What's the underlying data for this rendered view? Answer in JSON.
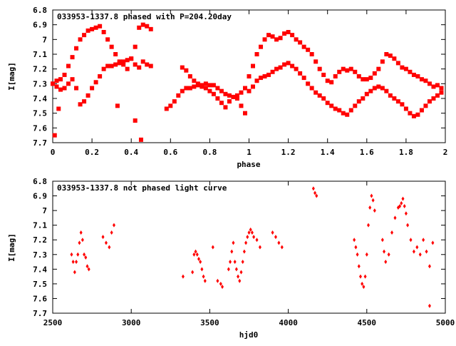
{
  "chart_data": [
    {
      "type": "scatter",
      "title": "033953-1337.8 phased with P=204.20day",
      "xlabel": "phase",
      "ylabel": "I[mag]",
      "xlim": [
        0,
        2
      ],
      "ylim": [
        6.8,
        7.7
      ],
      "y_inverted": true,
      "x_ticks": [
        "0",
        "0.2",
        "0.4",
        "0.6",
        "0.8",
        "1",
        "1.2",
        "1.4",
        "1.6",
        "1.8",
        "2"
      ],
      "y_ticks": [
        "6.8",
        "6.9",
        "7",
        "7.1",
        "7.2",
        "7.3",
        "7.4",
        "7.5",
        "7.6",
        "7.7"
      ],
      "marker_color": "#ff0000",
      "series": [
        {
          "x": [
            0.0,
            0.02,
            0.04,
            0.06,
            0.08,
            0.1,
            0.12,
            0.14,
            0.16,
            0.18,
            0.2,
            0.22,
            0.24,
            0.26,
            0.28,
            0.3,
            0.32,
            0.34,
            0.36,
            0.38,
            0.4,
            0.42,
            0.44,
            0.46,
            0.48,
            0.5,
            0.0,
            0.02,
            0.04,
            0.06,
            0.08,
            0.1,
            0.12,
            0.14,
            0.16,
            0.18,
            0.2,
            0.22,
            0.24,
            0.26,
            0.28,
            0.3,
            0.32,
            0.34,
            0.36,
            0.38,
            0.4,
            0.42,
            0.44,
            0.46,
            0.48,
            0.5,
            0.01,
            0.03,
            0.33,
            0.45,
            0.42,
            0.58,
            0.6,
            0.62,
            0.64,
            0.66,
            0.68,
            0.7,
            0.72,
            0.74,
            0.76,
            0.78,
            0.8,
            0.82,
            0.84,
            0.86,
            0.88,
            0.9,
            0.92,
            0.94,
            0.96,
            0.98,
            0.66,
            0.68,
            0.7,
            0.72,
            0.74,
            0.76,
            0.78,
            0.8,
            0.82,
            0.84,
            0.86,
            0.88,
            0.9,
            0.92,
            0.94,
            0.96,
            0.98,
            1.0,
            1.02,
            1.04,
            1.06,
            1.08,
            1.1,
            1.12,
            1.14,
            1.16,
            1.18,
            1.2,
            1.22,
            1.24,
            1.26,
            1.28,
            1.3,
            1.32,
            1.34,
            1.36,
            1.38,
            1.4,
            1.42,
            1.44,
            1.46,
            1.48,
            1.5,
            1.0,
            1.02,
            1.04,
            1.06,
            1.08,
            1.1,
            1.12,
            1.14,
            1.16,
            1.18,
            1.2,
            1.22,
            1.24,
            1.26,
            1.28,
            1.3,
            1.32,
            1.34,
            1.36,
            1.38,
            1.4,
            1.42,
            1.44,
            1.46,
            1.48,
            1.5,
            1.52,
            1.54,
            1.56,
            1.58,
            1.6,
            1.62,
            1.64,
            1.66,
            1.68,
            1.7,
            1.72,
            1.74,
            1.76,
            1.78,
            1.8,
            1.82,
            1.84,
            1.86,
            1.88,
            1.9,
            1.92,
            1.94,
            1.96,
            1.98,
            1.52,
            1.54,
            1.56,
            1.58,
            1.6,
            1.62,
            1.64,
            1.66,
            1.68,
            1.7,
            1.72,
            1.74,
            1.76,
            1.78,
            1.8,
            1.82,
            1.84,
            1.86,
            1.88,
            1.9,
            1.92,
            1.94,
            1.96,
            1.98
          ],
          "y": [
            7.3,
            7.28,
            7.27,
            7.24,
            7.18,
            7.12,
            7.06,
            7.0,
            6.97,
            6.94,
            6.93,
            6.92,
            6.91,
            6.95,
            7.0,
            7.05,
            7.1,
            7.15,
            7.17,
            7.2,
            7.13,
            7.05,
            6.92,
            6.9,
            6.91,
            6.93,
            7.3,
            7.32,
            7.34,
            7.33,
            7.3,
            7.27,
            7.33,
            7.44,
            7.42,
            7.38,
            7.33,
            7.29,
            7.25,
            7.2,
            7.18,
            7.18,
            7.17,
            7.16,
            7.15,
            7.14,
            7.13,
            7.17,
            7.19,
            7.15,
            7.17,
            7.18,
            7.65,
            7.47,
            7.45,
            7.68,
            7.55,
            7.47,
            7.45,
            7.42,
            7.38,
            7.35,
            7.33,
            7.33,
            7.32,
            7.31,
            7.31,
            7.3,
            7.31,
            7.31,
            7.33,
            7.35,
            7.37,
            7.38,
            7.39,
            7.38,
            7.36,
            7.33,
            7.19,
            7.21,
            7.25,
            7.28,
            7.3,
            7.32,
            7.33,
            7.35,
            7.37,
            7.4,
            7.43,
            7.46,
            7.42,
            7.39,
            7.4,
            7.45,
            7.5,
            7.35,
            7.32,
            7.28,
            7.26,
            7.25,
            7.24,
            7.22,
            7.2,
            7.19,
            7.17,
            7.16,
            7.18,
            7.2,
            7.23,
            7.26,
            7.3,
            7.33,
            7.36,
            7.38,
            7.4,
            7.43,
            7.45,
            7.47,
            7.48,
            7.5,
            7.51,
            7.25,
            7.18,
            7.1,
            7.05,
            7.0,
            6.97,
            6.98,
            7.0,
            6.99,
            6.96,
            6.95,
            6.97,
            7.0,
            7.02,
            7.05,
            7.07,
            7.1,
            7.15,
            7.2,
            7.24,
            7.28,
            7.29,
            7.25,
            7.22,
            7.2,
            7.21,
            7.48,
            7.45,
            7.42,
            7.4,
            7.37,
            7.35,
            7.33,
            7.32,
            7.33,
            7.35,
            7.38,
            7.4,
            7.42,
            7.44,
            7.47,
            7.5,
            7.52,
            7.51,
            7.48,
            7.45,
            7.42,
            7.4,
            7.38,
            7.36,
            7.2,
            7.22,
            7.25,
            7.27,
            7.27,
            7.26,
            7.23,
            7.2,
            7.15,
            7.1,
            7.11,
            7.13,
            7.16,
            7.19,
            7.2,
            7.22,
            7.24,
            7.25,
            7.27,
            7.28,
            7.3,
            7.32,
            7.31,
            7.33
          ]
        }
      ]
    },
    {
      "type": "scatter",
      "title": "033953-1337.8 not phased light curve",
      "xlabel": "hjd0",
      "ylabel": "I[mag]",
      "xlim": [
        2500,
        5000
      ],
      "ylim": [
        6.8,
        7.7
      ],
      "y_inverted": true,
      "x_ticks": [
        "2500",
        "3000",
        "3500",
        "4000",
        "4500",
        "5000"
      ],
      "y_ticks": [
        "6.8",
        "6.9",
        "7",
        "7.1",
        "7.2",
        "7.3",
        "7.4",
        "7.5",
        "7.6",
        "7.7"
      ],
      "marker_color": "#ff0000",
      "series": [
        {
          "x": [
            2620,
            2630,
            2640,
            2650,
            2660,
            2670,
            2680,
            2690,
            2700,
            2710,
            2720,
            2730,
            2820,
            2840,
            2860,
            2875,
            2890,
            3330,
            3390,
            3400,
            3410,
            3420,
            3430,
            3440,
            3450,
            3460,
            3470,
            3520,
            3550,
            3570,
            3580,
            3620,
            3630,
            3640,
            3650,
            3660,
            3670,
            3680,
            3690,
            3700,
            3710,
            3720,
            3730,
            3740,
            3750,
            3760,
            3770,
            3780,
            3800,
            3820,
            3900,
            3920,
            3940,
            3960,
            4160,
            4170,
            4180,
            4420,
            4430,
            4440,
            4450,
            4460,
            4470,
            4480,
            4490,
            4500,
            4510,
            4520,
            4530,
            4540,
            4550,
            4600,
            4610,
            4620,
            4640,
            4660,
            4680,
            4700,
            4710,
            4720,
            4730,
            4740,
            4750,
            4760,
            4780,
            4800,
            4820,
            4840,
            4860,
            4880,
            4900,
            4920,
            4900
          ],
          "y": [
            7.3,
            7.35,
            7.42,
            7.35,
            7.3,
            7.22,
            7.15,
            7.2,
            7.3,
            7.32,
            7.38,
            7.4,
            7.18,
            7.22,
            7.25,
            7.15,
            7.1,
            7.45,
            7.42,
            7.3,
            7.28,
            7.3,
            7.33,
            7.35,
            7.4,
            7.45,
            7.48,
            7.25,
            7.48,
            7.5,
            7.52,
            7.4,
            7.35,
            7.28,
            7.22,
            7.35,
            7.4,
            7.45,
            7.48,
            7.42,
            7.35,
            7.28,
            7.22,
            7.18,
            7.15,
            7.13,
            7.15,
            7.18,
            7.2,
            7.25,
            7.15,
            7.18,
            7.22,
            7.25,
            6.85,
            6.88,
            6.9,
            7.2,
            7.25,
            7.3,
            7.38,
            7.45,
            7.5,
            7.52,
            7.45,
            7.3,
            7.1,
            6.98,
            6.9,
            6.93,
            7.0,
            7.2,
            7.28,
            7.35,
            7.3,
            7.15,
            7.05,
            6.98,
            6.97,
            6.95,
            6.92,
            6.97,
            7.02,
            7.1,
            7.2,
            7.28,
            7.25,
            7.3,
            7.2,
            7.28,
            7.38,
            7.22,
            7.65
          ]
        }
      ]
    }
  ]
}
